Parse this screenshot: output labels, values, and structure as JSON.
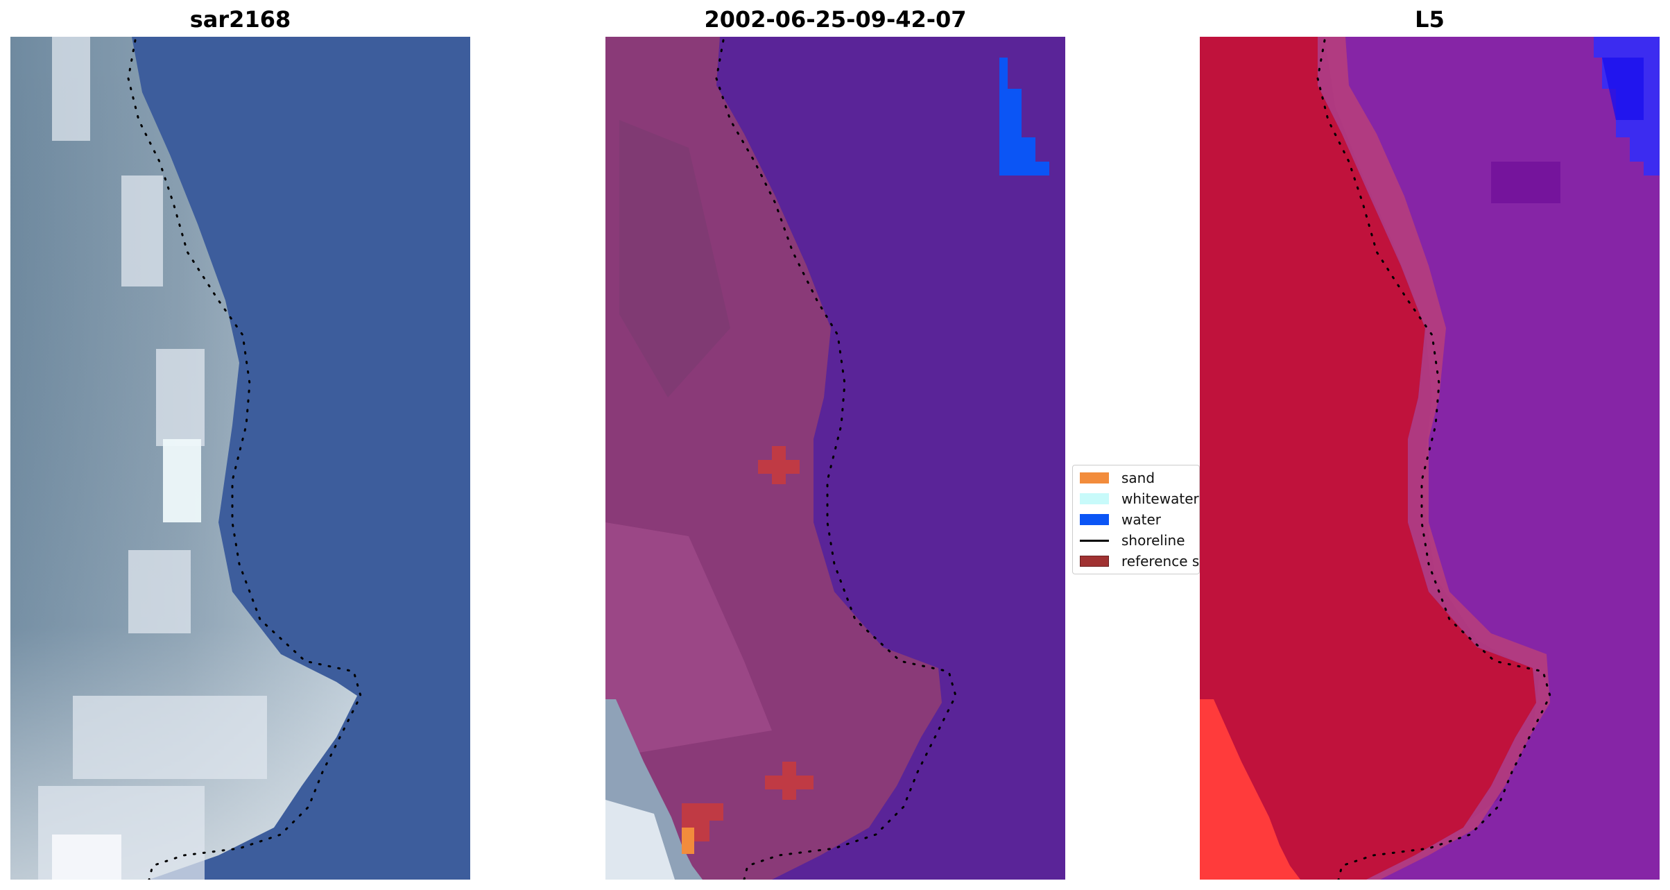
{
  "panels": [
    {
      "title": "sar2168"
    },
    {
      "title": "2002-06-25-09-42-07"
    },
    {
      "title": "L5"
    }
  ],
  "legend": {
    "items": [
      {
        "label": "sand",
        "kind": "patch",
        "color": "#f28c3c"
      },
      {
        "label": "whitewater",
        "kind": "patch",
        "color": "#c8fafa"
      },
      {
        "label": "water",
        "kind": "patch",
        "color": "#0b55f5"
      },
      {
        "label": "shoreline",
        "kind": "line",
        "color": "#000000"
      },
      {
        "label": "reference s",
        "kind": "patch",
        "color": "#a03232"
      }
    ]
  },
  "colors": {
    "rgb_water": "#3d5d9c",
    "rgb_land": "#7f95a8",
    "rgb_bright": "#e6ecf2",
    "class_water": "#5a2498",
    "class_land": "#8a3a78",
    "class_mndwi_land": "#c0123c",
    "class_mndwi_water": "#7b1aa0"
  }
}
